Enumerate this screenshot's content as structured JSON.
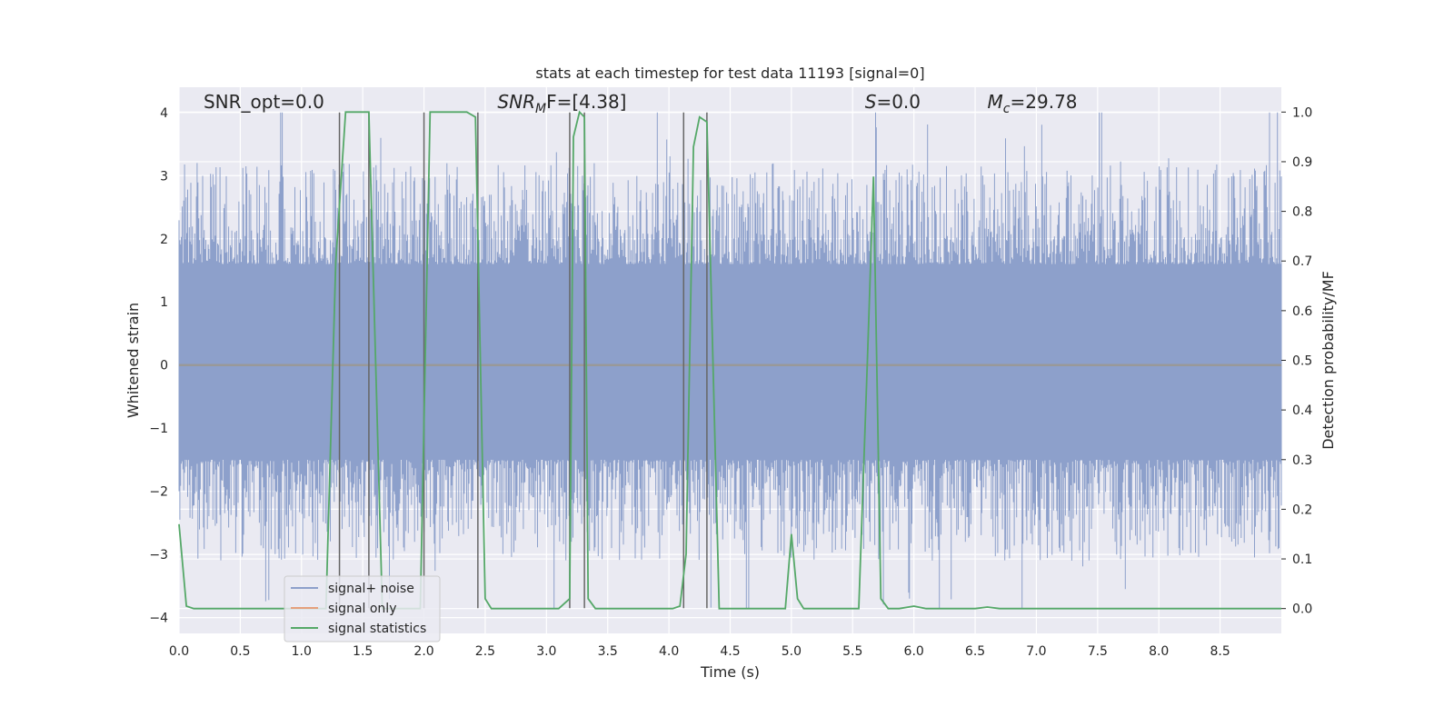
{
  "chart_data": {
    "type": "line",
    "title": "stats at each timestep for test data 11193 [signal=0]",
    "xlabel": "Time (s)",
    "ylabel": "Whitened strain",
    "ylabel_right": "Detection probability/MF",
    "xlim": [
      0.0,
      9.0
    ],
    "ylim": [
      -4.25,
      4.4
    ],
    "ylim_right": [
      -0.05,
      1.05
    ],
    "x_ticks": [
      0.0,
      0.5,
      1.0,
      1.5,
      2.0,
      2.5,
      3.0,
      3.5,
      4.0,
      4.5,
      5.0,
      5.5,
      6.0,
      6.5,
      7.0,
      7.5,
      8.0,
      8.5
    ],
    "x_tick_labels": [
      "0.0",
      "0.5",
      "1.0",
      "1.5",
      "2.0",
      "2.5",
      "3.0",
      "3.5",
      "4.0",
      "4.5",
      "5.0",
      "5.5",
      "6.0",
      "6.5",
      "7.0",
      "7.5",
      "8.0",
      "8.5"
    ],
    "y_ticks": [
      -4,
      -3,
      -2,
      -1,
      0,
      1,
      2,
      3,
      4
    ],
    "y_tick_labels": [
      "−4",
      "−3",
      "−2",
      "−1",
      "0",
      "1",
      "2",
      "3",
      "4"
    ],
    "y_ticks_right": [
      0.0,
      0.1,
      0.2,
      0.3,
      0.4,
      0.5,
      0.6,
      0.7,
      0.8,
      0.9,
      1.0
    ],
    "y_tick_labels_right": [
      "0.0",
      "0.1",
      "0.2",
      "0.3",
      "0.4",
      "0.5",
      "0.6",
      "0.7",
      "0.8",
      "0.9",
      "1.0"
    ],
    "grid": true,
    "legend_position": "lower-left",
    "annotations": [
      {
        "text": "SNR_opt=0.0",
        "x": 0.2,
        "y": 4.1
      },
      {
        "text": "SNR",
        "sub": "M",
        "after": "F=[4.38]",
        "italic": true,
        "x": 2.6,
        "y": 4.1
      },
      {
        "text": "S",
        "after": "=0.0",
        "italic": true,
        "x": 5.6,
        "y": 4.1
      },
      {
        "text": "M",
        "sub": "c",
        "after": "=29.78",
        "italic": true,
        "x": 6.6,
        "y": 4.1
      }
    ],
    "vertical_markers": [
      {
        "x": 1.31,
        "y_top": 4.0,
        "y_bottom": -3.85
      },
      {
        "x": 1.55,
        "y_top": 4.0,
        "y_bottom": -3.85
      },
      {
        "x": 2.0,
        "y_top": 4.0,
        "y_bottom": -3.85
      },
      {
        "x": 2.44,
        "y_top": 4.0,
        "y_bottom": -3.85
      },
      {
        "x": 3.19,
        "y_top": 4.0,
        "y_bottom": -3.85
      },
      {
        "x": 3.31,
        "y_top": 4.0,
        "y_bottom": -3.85
      },
      {
        "x": 4.12,
        "y_top": 4.0,
        "y_bottom": -3.85
      },
      {
        "x": 4.31,
        "y_top": 4.0,
        "y_bottom": -3.85
      }
    ],
    "noise_band": {
      "upper_typical": 1.6,
      "lower_typical": -1.5,
      "peak_max": 4.0,
      "peak_min": -3.85
    },
    "series": [
      {
        "name": "signal+ noise",
        "color": "#8da0cb",
        "axis": "left",
        "description_values": "dense whitened strain, mostly within ±2 with spikes up to about ±4"
      },
      {
        "name": "signal only",
        "color": "#e5a07c",
        "axis": "left",
        "y_constant": 0.0
      },
      {
        "name": "signal statistics",
        "color": "#55a868",
        "axis": "right",
        "x": [
          0.0,
          0.06,
          0.12,
          1.2,
          1.28,
          1.36,
          1.41,
          1.55,
          1.66,
          1.97,
          2.05,
          2.35,
          2.42,
          2.5,
          2.55,
          3.1,
          3.19,
          3.22,
          3.27,
          3.31,
          3.34,
          3.4,
          3.48,
          4.03,
          4.09,
          4.14,
          4.2,
          4.25,
          4.31,
          4.41,
          4.45,
          4.5,
          4.95,
          5.0,
          5.05,
          5.1,
          5.55,
          5.62,
          5.67,
          5.73,
          5.79,
          5.88,
          6.0,
          6.1,
          6.5,
          6.6,
          6.7,
          9.0
        ],
        "y": [
          0.17,
          0.005,
          0.0,
          0.0,
          0.7,
          1.0,
          1.0,
          1.0,
          0.0,
          0.0,
          1.0,
          1.0,
          0.99,
          0.02,
          0.0,
          0.0,
          0.02,
          0.95,
          1.0,
          0.99,
          0.02,
          0.0,
          0.0,
          0.0,
          0.005,
          0.11,
          0.93,
          0.99,
          0.98,
          0.0,
          0.0,
          0.0,
          0.0,
          0.15,
          0.02,
          0.0,
          0.0,
          0.5,
          0.87,
          0.02,
          0.0,
          0.0,
          0.005,
          0.0,
          0.0,
          0.003,
          0.0,
          0.0
        ]
      }
    ]
  }
}
